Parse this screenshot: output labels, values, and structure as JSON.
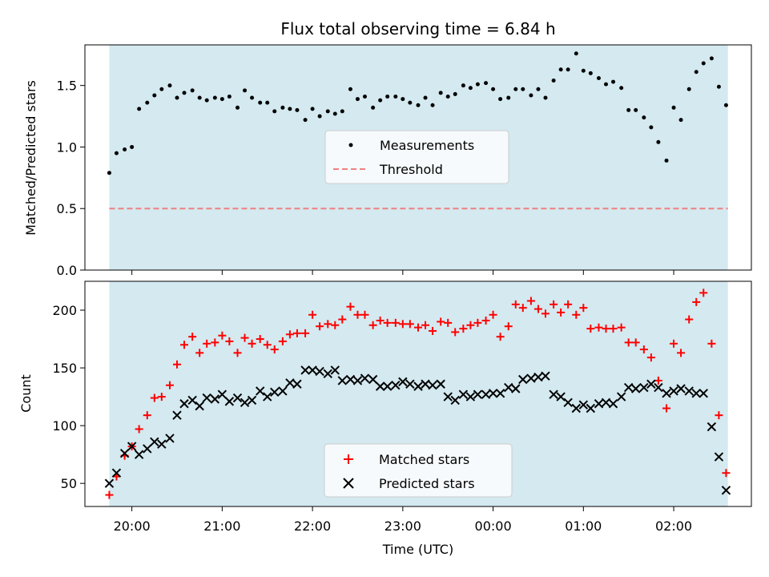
{
  "title": "Flux total observing time = 6.84 h",
  "colors": {
    "background_band": "#d4e9f0",
    "measurement": "#000000",
    "threshold": "#f08080",
    "matched": "#ff0000",
    "predicted": "#000000"
  },
  "chart_data": [
    {
      "type": "scatter",
      "panel": "top",
      "title": "Flux total observing time = 6.84 h",
      "xlabel": "",
      "ylabel": "Matched/Predicted stars",
      "ylim": [
        0,
        1.83
      ],
      "yticks": [
        0.0,
        0.5,
        1.0,
        1.5
      ],
      "ytick_labels": [
        "0.0",
        "0.5",
        "1.0",
        "1.5"
      ],
      "legend": {
        "placement": "center",
        "entries": [
          "Measurements",
          "Threshold"
        ]
      },
      "threshold": 0.5,
      "x": [
        19.75,
        19.83,
        19.92,
        20.0,
        20.08,
        20.17,
        20.25,
        20.33,
        20.42,
        20.5,
        20.58,
        20.67,
        20.75,
        20.83,
        20.92,
        21.0,
        21.08,
        21.17,
        21.25,
        21.33,
        21.42,
        21.5,
        21.58,
        21.67,
        21.75,
        21.83,
        21.92,
        22.0,
        22.08,
        22.17,
        22.25,
        22.33,
        22.42,
        22.5,
        22.58,
        22.67,
        22.75,
        22.83,
        22.92,
        23.0,
        23.08,
        23.17,
        23.25,
        23.33,
        23.42,
        23.5,
        23.58,
        23.67,
        23.75,
        23.83,
        23.92,
        24.0,
        24.08,
        24.17,
        24.25,
        24.33,
        24.42,
        24.5,
        24.58,
        24.67,
        24.75,
        24.83,
        24.92,
        25.0,
        25.08,
        25.17,
        25.25,
        25.33,
        25.42,
        25.5,
        25.58,
        25.67,
        25.75,
        25.83,
        25.92,
        26.0,
        26.08,
        26.17,
        26.25,
        26.33,
        26.42,
        26.5,
        26.58
      ],
      "series": [
        {
          "name": "Measurements",
          "values": [
            0.79,
            0.95,
            0.98,
            1.0,
            1.31,
            1.36,
            1.42,
            1.47,
            1.5,
            1.4,
            1.44,
            1.46,
            1.4,
            1.38,
            1.4,
            1.39,
            1.41,
            1.32,
            1.46,
            1.4,
            1.36,
            1.36,
            1.29,
            1.32,
            1.31,
            1.3,
            1.22,
            1.31,
            1.25,
            1.29,
            1.27,
            1.29,
            1.47,
            1.39,
            1.41,
            1.32,
            1.38,
            1.41,
            1.41,
            1.39,
            1.36,
            1.34,
            1.4,
            1.34,
            1.44,
            1.41,
            1.43,
            1.5,
            1.48,
            1.51,
            1.52,
            1.47,
            1.39,
            1.4,
            1.47,
            1.47,
            1.42,
            1.47,
            1.4,
            1.54,
            1.63,
            1.63,
            1.76,
            1.62,
            1.6,
            1.56,
            1.51,
            1.53,
            1.48,
            1.3,
            1.3,
            1.24,
            1.16,
            1.04,
            0.89,
            1.32,
            1.22,
            1.47,
            1.61,
            1.68,
            1.72,
            1.49,
            1.34
          ]
        }
      ]
    },
    {
      "type": "scatter",
      "panel": "bottom",
      "xlabel": "Time (UTC)",
      "ylabel": "Count",
      "ylim": [
        30,
        225
      ],
      "yticks": [
        50,
        100,
        150,
        200
      ],
      "ytick_labels": [
        "50",
        "100",
        "150",
        "200"
      ],
      "xlim": [
        19.48,
        26.86
      ],
      "xticks": [
        20,
        21,
        22,
        23,
        24,
        25,
        26
      ],
      "xtick_labels": [
        "20:00",
        "21:00",
        "22:00",
        "23:00",
        "00:00",
        "01:00",
        "02:00"
      ],
      "span": [
        19.75,
        26.6
      ],
      "legend": {
        "placement": "lower center",
        "entries": [
          "Matched stars",
          "Predicted stars"
        ]
      },
      "series": [
        {
          "name": "Matched stars",
          "marker": "+",
          "x": [
            19.75,
            19.83,
            19.92,
            20.0,
            20.08,
            20.17,
            20.25,
            20.33,
            20.42,
            20.5,
            20.58,
            20.67,
            20.75,
            20.83,
            20.92,
            21.0,
            21.08,
            21.17,
            21.25,
            21.33,
            21.42,
            21.5,
            21.58,
            21.67,
            21.75,
            21.83,
            21.92,
            22.0,
            22.08,
            22.17,
            22.25,
            22.33,
            22.42,
            22.5,
            22.58,
            22.67,
            22.75,
            22.83,
            22.92,
            23.0,
            23.08,
            23.17,
            23.25,
            23.33,
            23.42,
            23.5,
            23.58,
            23.67,
            23.75,
            23.83,
            23.92,
            24.0,
            24.08,
            24.17,
            24.25,
            24.33,
            24.42,
            24.5,
            24.58,
            24.67,
            24.75,
            24.83,
            24.92,
            25.0,
            25.08,
            25.17,
            25.25,
            25.33,
            25.42,
            25.5,
            25.58,
            25.67,
            25.75,
            25.83,
            25.92,
            26.0,
            26.08,
            26.17,
            26.25,
            26.33,
            26.42,
            26.5,
            26.58
          ],
          "values": [
            40,
            56,
            74,
            82,
            97,
            109,
            124,
            125,
            135,
            153,
            170,
            177,
            163,
            171,
            172,
            178,
            173,
            163,
            176,
            171,
            175,
            170,
            166,
            173,
            179,
            180,
            180,
            196,
            186,
            188,
            187,
            192,
            203,
            196,
            196,
            187,
            191,
            189,
            189,
            188,
            188,
            185,
            187,
            182,
            190,
            189,
            181,
            184,
            187,
            189,
            191,
            196,
            177,
            186,
            205,
            202,
            208,
            201,
            197,
            205,
            198,
            205,
            196,
            202,
            184,
            185,
            184,
            184,
            185,
            172,
            172,
            166,
            159,
            139,
            115,
            171,
            163,
            192,
            207,
            215,
            171,
            109,
            59
          ]
        },
        {
          "name": "Predicted stars",
          "marker": "x",
          "x": [
            19.75,
            19.83,
            19.92,
            20.0,
            20.08,
            20.17,
            20.25,
            20.33,
            20.42,
            20.5,
            20.58,
            20.67,
            20.75,
            20.83,
            20.92,
            21.0,
            21.08,
            21.17,
            21.25,
            21.33,
            21.42,
            21.5,
            21.58,
            21.67,
            21.75,
            21.83,
            21.92,
            22.0,
            22.08,
            22.17,
            22.25,
            22.33,
            22.42,
            22.5,
            22.58,
            22.67,
            22.75,
            22.83,
            22.92,
            23.0,
            23.08,
            23.17,
            23.25,
            23.33,
            23.42,
            23.5,
            23.58,
            23.67,
            23.75,
            23.83,
            23.92,
            24.0,
            24.08,
            24.17,
            24.25,
            24.33,
            24.42,
            24.5,
            24.58,
            24.67,
            24.75,
            24.83,
            24.92,
            25.0,
            25.08,
            25.17,
            25.25,
            25.33,
            25.42,
            25.5,
            25.58,
            25.67,
            25.75,
            25.83,
            25.92,
            26.0,
            26.08,
            26.17,
            26.25,
            26.33,
            26.42,
            26.5,
            26.58
          ],
          "values": [
            50,
            59,
            76,
            82,
            75,
            80,
            86,
            84,
            89,
            109,
            119,
            122,
            117,
            124,
            123,
            127,
            121,
            124,
            120,
            122,
            130,
            125,
            129,
            130,
            137,
            136,
            148,
            148,
            147,
            145,
            148,
            139,
            140,
            139,
            141,
            140,
            134,
            134,
            135,
            138,
            136,
            134,
            136,
            135,
            136,
            125,
            122,
            127,
            125,
            127,
            127,
            128,
            128,
            133,
            132,
            140,
            141,
            142,
            143,
            127,
            125,
            120,
            115,
            118,
            115,
            119,
            120,
            119,
            125,
            133,
            132,
            133,
            136,
            133,
            128,
            130,
            132,
            130,
            128,
            128,
            99,
            73,
            44
          ]
        }
      ]
    }
  ]
}
